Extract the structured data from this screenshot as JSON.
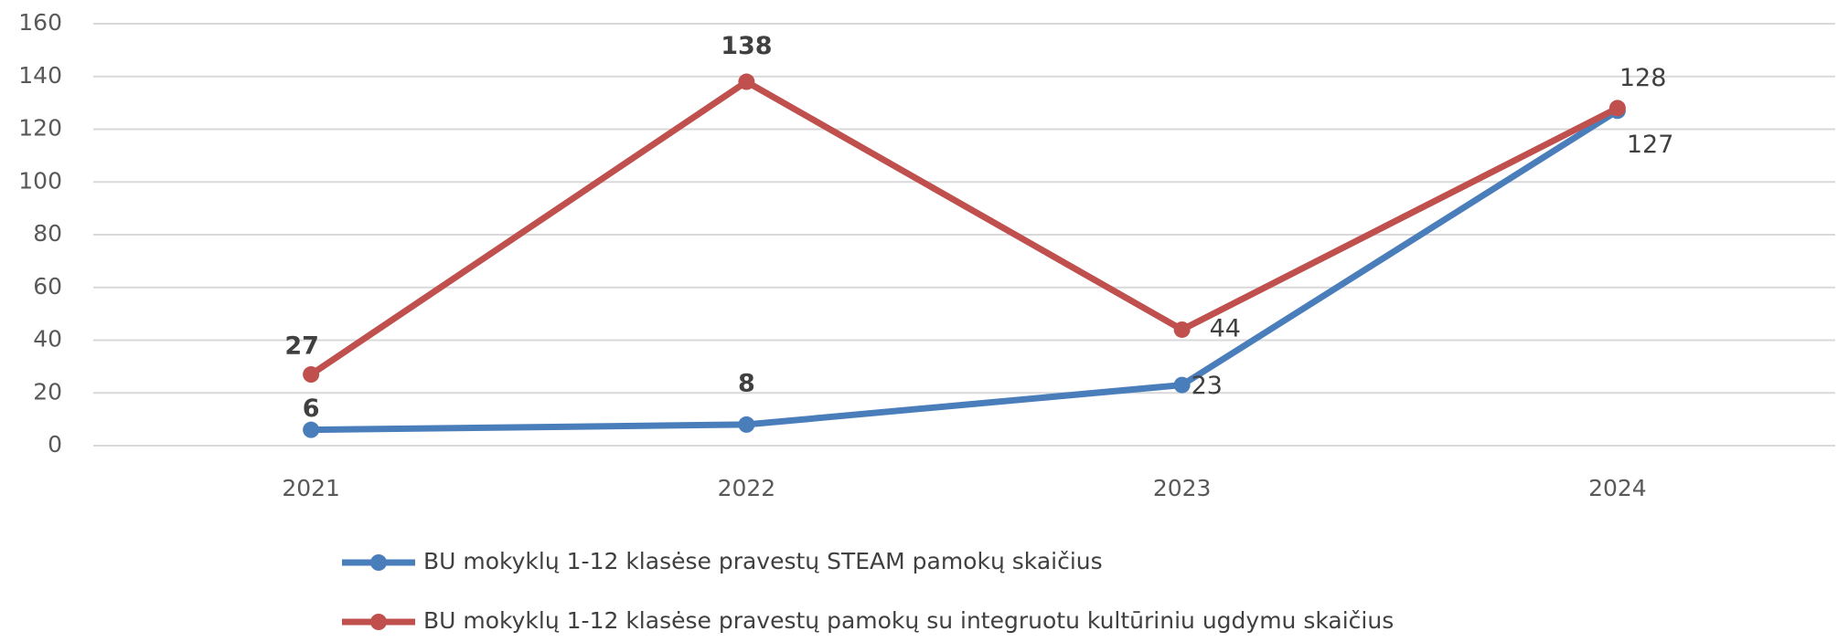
{
  "chart_data": {
    "type": "line",
    "categories": [
      "2021",
      "2022",
      "2023",
      "2024"
    ],
    "series": [
      {
        "name": "BU mokyklų 1-12 klasėse pravestų STEAM pamokų skaičius",
        "color": "#4a7ebb",
        "values": [
          6,
          8,
          23,
          127
        ]
      },
      {
        "name": "BU mokyklų 1-12 klasėse pravestų pamokų su integruotu kultūriniu ugdymu skaičius",
        "color": "#c0504d",
        "values": [
          27,
          138,
          44,
          128
        ]
      }
    ],
    "ylim": [
      0,
      160
    ],
    "yticks": [
      0,
      20,
      40,
      60,
      80,
      100,
      120,
      140,
      160
    ],
    "grid": true,
    "legend": "bottom"
  }
}
